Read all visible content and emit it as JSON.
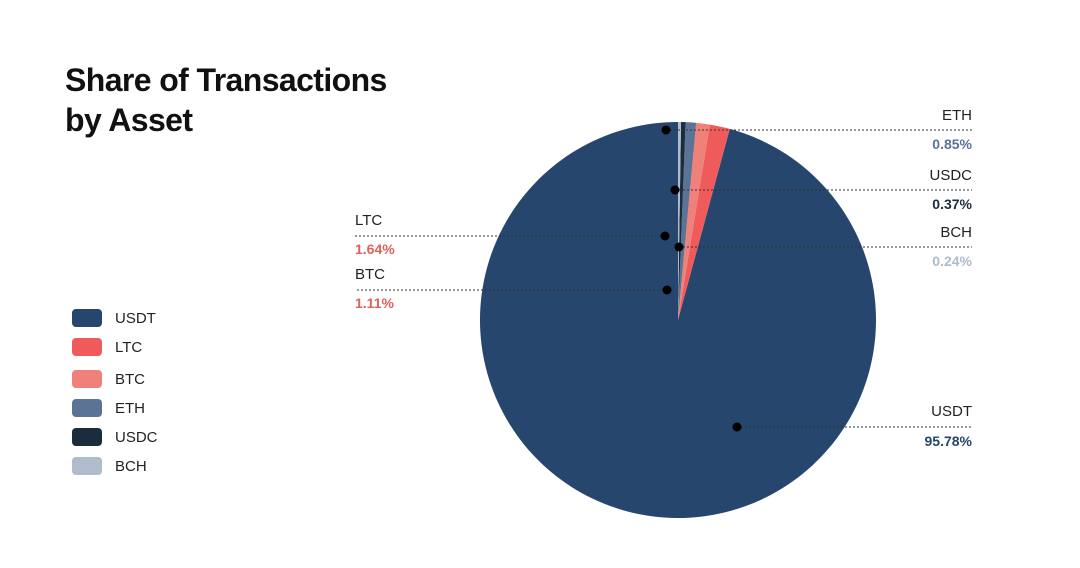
{
  "title_lines": [
    "Share of Transactions",
    "by Asset"
  ],
  "chart_data": {
    "type": "pie",
    "title": "Share of Transactions by Asset",
    "legend_position": "left",
    "start": "12 o'clock",
    "direction": "counterclockwise",
    "slices": [
      {
        "name": "USDT",
        "value": 95.78,
        "label": "95.78%",
        "color": "#26466d",
        "label_color": "#26466d"
      },
      {
        "name": "LTC",
        "value": 1.64,
        "label": "1.64%",
        "color": "#ef5b5b",
        "label_color": "#e0605a"
      },
      {
        "name": "BTC",
        "value": 1.11,
        "label": "1.11%",
        "color": "#f0807a",
        "label_color": "#e0605a"
      },
      {
        "name": "ETH",
        "value": 0.85,
        "label": "0.85%",
        "color": "#5b7394",
        "label_color": "#5b7394"
      },
      {
        "name": "USDC",
        "value": 0.37,
        "label": "0.37%",
        "color": "#1b2c3d",
        "label_color": "#1b2c3d"
      },
      {
        "name": "BCH",
        "value": 0.24,
        "label": "0.24%",
        "color": "#aebccb",
        "label_color": "#aebccb"
      }
    ]
  }
}
